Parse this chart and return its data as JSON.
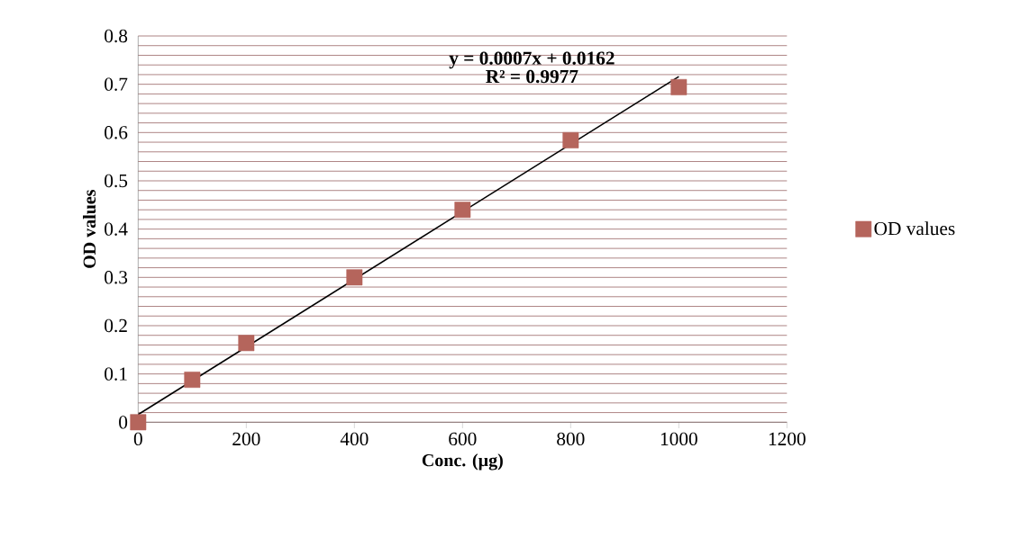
{
  "chart_data": {
    "type": "scatter",
    "xlabel": "Conc. (µg)",
    "ylabel": "OD values",
    "x": [
      0,
      100,
      200,
      400,
      600,
      800,
      1000
    ],
    "series": [
      {
        "name": "OD values",
        "color": "#b5655c",
        "marker": "square",
        "values": [
          0.0,
          0.088,
          0.164,
          0.3,
          0.44,
          0.584,
          0.694
        ]
      },
      {
        "type": "line",
        "color": "#000000",
        "marker": "none",
        "x": [
          0,
          1000
        ],
        "values": [
          0.016,
          0.716
        ]
      }
    ],
    "xlim": [
      0,
      1200
    ],
    "xticks": [
      0,
      200,
      400,
      600,
      800,
      1000,
      1200
    ],
    "ylim": [
      0,
      0.8
    ],
    "yticks": [
      0,
      {
        "value": 0.02,
        "label": null
      },
      {
        "value": 0.04,
        "label": null
      },
      {
        "value": 0.06,
        "label": null
      },
      {
        "value": 0.08,
        "label": null
      },
      0.1,
      {
        "value": 0.12,
        "label": null
      },
      {
        "value": 0.14,
        "label": null
      },
      {
        "value": 0.16,
        "label": null
      },
      {
        "value": 0.18,
        "label": null
      },
      0.2,
      {
        "value": 0.22,
        "label": null
      },
      {
        "value": 0.24,
        "label": null
      },
      {
        "value": 0.26,
        "label": null
      },
      {
        "value": 0.28,
        "label": null
      },
      0.3,
      {
        "value": 0.32,
        "label": null
      },
      {
        "value": 0.34,
        "label": null
      },
      {
        "value": 0.36,
        "label": null
      },
      {
        "value": 0.38,
        "label": null
      },
      0.4,
      {
        "value": 0.42,
        "label": null
      },
      {
        "value": 0.44,
        "label": null
      },
      {
        "value": 0.46,
        "label": null
      },
      {
        "value": 0.48,
        "label": null
      },
      0.5,
      {
        "value": 0.52,
        "label": null
      },
      {
        "value": 0.54,
        "label": null
      },
      {
        "value": 0.56,
        "label": null
      },
      {
        "value": 0.58,
        "label": null
      },
      0.6,
      {
        "value": 0.62,
        "label": null
      },
      {
        "value": 0.64,
        "label": null
      },
      {
        "value": 0.66,
        "label": null
      },
      {
        "value": 0.68,
        "label": null
      },
      0.7,
      {
        "value": 0.72,
        "label": null
      },
      {
        "value": 0.74,
        "label": null
      },
      {
        "value": 0.76,
        "label": null
      },
      {
        "value": 0.78,
        "label": null
      },
      0.8
    ],
    "grid": "y",
    "legend": "right",
    "annotations": [
      "y = 0.0007x + 0.0162",
      "R² = 0.9977"
    ]
  }
}
